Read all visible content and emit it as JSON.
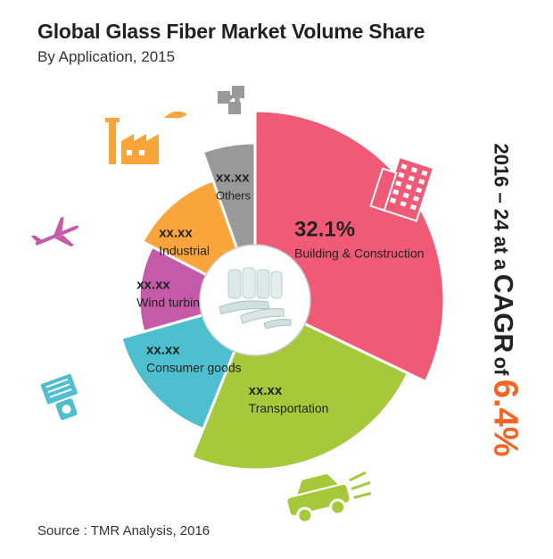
{
  "header": {
    "title": "Global Glass Fiber Market Volume Share",
    "subtitle": "By Application, 2015"
  },
  "cagr": {
    "prefix": "2016 – 24 at a",
    "middle": "CAGR",
    "of": "of",
    "value": "6.4%"
  },
  "source": "Source : TMR Analysis, 2016",
  "chart_data": {
    "type": "pie",
    "title": "Global Glass Fiber Market Volume Share",
    "subtitle": "By Application, 2015",
    "slices": [
      {
        "name": "Building & Construction",
        "value": 32.1,
        "value_label": "32.1%",
        "color": "#f05a77",
        "icon": "building-icon"
      },
      {
        "name": "Transportation",
        "value": 24.0,
        "value_label": "xx.xx",
        "color": "#a5c93b",
        "icon": "car-icon"
      },
      {
        "name": "Consumer goods",
        "value": 14.5,
        "value_label": "xx.xx",
        "color": "#4dbfcf",
        "icon": "blender-icon"
      },
      {
        "name": "Wind turbine",
        "value": 12.0,
        "value_label": "xx.xx",
        "color": "#c45aa8",
        "icon": "airplane-icon"
      },
      {
        "name": "Industrial",
        "value": 12.0,
        "value_label": "xx.xx",
        "color": "#f9a53b",
        "icon": "factory-icon"
      },
      {
        "name": "Others",
        "value": 5.4,
        "value_label": "xx.xx",
        "color": "#999999",
        "icon": "puzzle-icon"
      }
    ],
    "center_image": "glass-fiber-spools",
    "legend": "none"
  }
}
